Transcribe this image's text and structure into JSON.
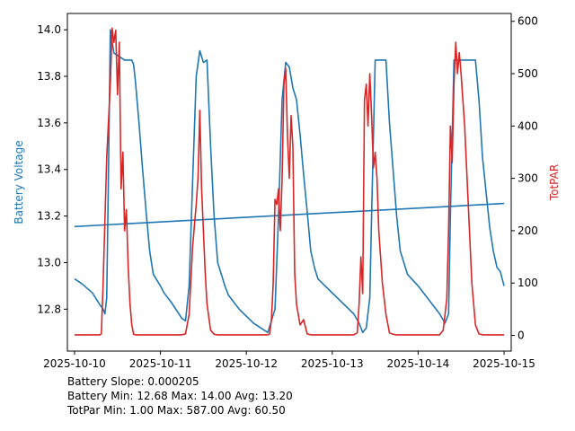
{
  "chart_data": {
    "type": "line",
    "title": "",
    "xlabel": "",
    "ylabel_left": "Battery Voltage",
    "ylabel_right": "TotPAR",
    "colors": {
      "battery": "#1f77b4",
      "totpar": "#d62728"
    },
    "x_range": [
      "2025-10-09 22:00",
      "2025-10-15 02:00"
    ],
    "x_ticks": [
      "2025-10-10",
      "2025-10-11",
      "2025-10-12",
      "2025-10-13",
      "2025-10-14",
      "2025-10-15"
    ],
    "ylim_left": [
      12.62,
      14.07
    ],
    "yticks_left": [
      "12.8",
      "13.0",
      "13.2",
      "13.4",
      "13.6",
      "13.8",
      "14.0"
    ],
    "ylim_right": [
      -30,
      615
    ],
    "yticks_right": [
      "0",
      "100",
      "200",
      "300",
      "400",
      "500",
      "600"
    ],
    "grid": false,
    "series": [
      {
        "name": "Battery Voltage",
        "axis": "left",
        "x": [
          "2025-10-10 00:00",
          "2025-10-10 02:00",
          "2025-10-10 05:00",
          "2025-10-10 07:00",
          "2025-10-10 08:00",
          "2025-10-10 08:30",
          "2025-10-10 09:00",
          "2025-10-10 09:30",
          "2025-10-10 10:00",
          "2025-10-10 11:00",
          "2025-10-10 14:00",
          "2025-10-10 16:00",
          "2025-10-10 16:30",
          "2025-10-10 17:00",
          "2025-10-10 18:00",
          "2025-10-10 19:00",
          "2025-10-10 20:00",
          "2025-10-10 21:00",
          "2025-10-10 22:00",
          "2025-10-11 00:00",
          "2025-10-11 01:00",
          "2025-10-11 03:00",
          "2025-10-11 06:00",
          "2025-10-11 07:00",
          "2025-10-11 08:00",
          "2025-10-11 09:00",
          "2025-10-11 10:00",
          "2025-10-11 11:00",
          "2025-10-11 12:00",
          "2025-10-11 13:00",
          "2025-10-11 14:00",
          "2025-10-11 15:00",
          "2025-10-11 16:00",
          "2025-10-11 17:00",
          "2025-10-11 18:00",
          "2025-10-11 19:00",
          "2025-10-11 20:00",
          "2025-10-11 22:00",
          "2025-10-12 02:00",
          "2025-10-12 06:00",
          "2025-10-12 08:00",
          "2025-10-12 09:00",
          "2025-10-12 10:00",
          "2025-10-12 11:00",
          "2025-10-12 12:00",
          "2025-10-12 13:00",
          "2025-10-12 14:00",
          "2025-10-12 15:00",
          "2025-10-12 16:00",
          "2025-10-12 17:00",
          "2025-10-12 18:00",
          "2025-10-12 19:00",
          "2025-10-12 20:00",
          "2025-10-12 22:00",
          "2025-10-13 02:00",
          "2025-10-13 06:00",
          "2025-10-13 07:30",
          "2025-10-13 08:30",
          "2025-10-13 09:30",
          "2025-10-13 10:30",
          "2025-10-13 11:00",
          "2025-10-13 12:00",
          "2025-10-13 14:00",
          "2025-10-13 15:00",
          "2025-10-13 16:00",
          "2025-10-13 17:00",
          "2025-10-13 18:00",
          "2025-10-13 19:00",
          "2025-10-13 21:00",
          "2025-10-14 00:00",
          "2025-10-14 03:00",
          "2025-10-14 06:00",
          "2025-10-14 07:30",
          "2025-10-14 08:30",
          "2025-10-14 09:00",
          "2025-10-14 10:00",
          "2025-10-14 15:00",
          "2025-10-14 16:00",
          "2025-10-14 17:00",
          "2025-10-14 18:00",
          "2025-10-14 19:00",
          "2025-10-14 20:00",
          "2025-10-14 21:00",
          "2025-10-14 22:00",
          "2025-10-14 23:00",
          "2025-10-15 00:00"
        ],
        "values": [
          12.93,
          12.91,
          12.87,
          12.82,
          12.8,
          12.78,
          12.85,
          13.4,
          14.0,
          13.9,
          13.87,
          13.87,
          13.85,
          13.78,
          13.6,
          13.4,
          13.22,
          13.05,
          12.95,
          12.9,
          12.87,
          12.83,
          12.76,
          12.75,
          12.9,
          13.35,
          13.8,
          13.91,
          13.86,
          13.87,
          13.5,
          13.2,
          13.0,
          12.95,
          12.9,
          12.86,
          12.84,
          12.8,
          12.74,
          12.7,
          12.8,
          13.2,
          13.7,
          13.86,
          13.84,
          13.75,
          13.7,
          13.55,
          13.38,
          13.22,
          13.05,
          12.98,
          12.93,
          12.9,
          12.84,
          12.78,
          12.74,
          12.7,
          12.72,
          12.85,
          13.2,
          13.87,
          13.87,
          13.87,
          13.6,
          13.4,
          13.2,
          13.05,
          12.95,
          12.9,
          12.84,
          12.78,
          12.74,
          12.78,
          13.2,
          13.87,
          13.87,
          13.87,
          13.7,
          13.45,
          13.3,
          13.15,
          13.05,
          12.98,
          12.96,
          12.9
        ]
      },
      {
        "name": "Battery Slope",
        "axis": "left",
        "x": [
          "2025-10-10 00:00",
          "2025-10-15 00:00"
        ],
        "values": [
          13.155,
          13.254
        ]
      },
      {
        "name": "TotPAR",
        "axis": "right",
        "x": [
          "2025-10-10 00:00",
          "2025-10-10 06:00",
          "2025-10-10 07:00",
          "2025-10-10 07:30",
          "2025-10-10 08:00",
          "2025-10-10 09:00",
          "2025-10-10 10:00",
          "2025-10-10 10:30",
          "2025-10-10 11:00",
          "2025-10-10 11:30",
          "2025-10-10 12:00",
          "2025-10-10 12:30",
          "2025-10-10 13:00",
          "2025-10-10 13:30",
          "2025-10-10 14:00",
          "2025-10-10 14:30",
          "2025-10-10 15:00",
          "2025-10-10 15:30",
          "2025-10-10 16:00",
          "2025-10-10 16:30",
          "2025-10-10 17:00",
          "2025-10-10 18:00",
          "2025-10-10 19:00",
          "2025-10-11 06:00",
          "2025-10-11 07:00",
          "2025-10-11 08:00",
          "2025-10-11 09:00",
          "2025-10-11 10:00",
          "2025-10-11 10:30",
          "2025-10-11 11:00",
          "2025-10-11 11:30",
          "2025-10-11 12:00",
          "2025-10-11 12:30",
          "2025-10-11 13:00",
          "2025-10-11 14:00",
          "2025-10-11 15:00",
          "2025-10-11 16:00",
          "2025-10-11 17:00",
          "2025-10-11 18:00",
          "2025-10-12 06:00",
          "2025-10-12 06:30",
          "2025-10-12 07:00",
          "2025-10-12 07:30",
          "2025-10-12 08:00",
          "2025-10-12 08:30",
          "2025-10-12 09:00",
          "2025-10-12 09:30",
          "2025-10-12 10:00",
          "2025-10-12 10:30",
          "2025-10-12 11:00",
          "2025-10-12 11:30",
          "2025-10-12 12:00",
          "2025-10-12 12:30",
          "2025-10-12 13:00",
          "2025-10-12 13:30",
          "2025-10-12 14:00",
          "2025-10-12 15:00",
          "2025-10-12 16:00",
          "2025-10-12 17:00",
          "2025-10-12 18:00",
          "2025-10-13 06:00",
          "2025-10-13 07:00",
          "2025-10-13 07:30",
          "2025-10-13 08:00",
          "2025-10-13 08:30",
          "2025-10-13 09:00",
          "2025-10-13 09:30",
          "2025-10-13 10:00",
          "2025-10-13 10:30",
          "2025-10-13 11:00",
          "2025-10-13 11:30",
          "2025-10-13 12:00",
          "2025-10-13 12:30",
          "2025-10-13 13:00",
          "2025-10-13 14:00",
          "2025-10-13 15:00",
          "2025-10-13 16:00",
          "2025-10-13 17:00",
          "2025-10-13 18:00",
          "2025-10-14 06:00",
          "2025-10-14 07:00",
          "2025-10-14 08:00",
          "2025-10-14 08:30",
          "2025-10-14 09:00",
          "2025-10-14 09:30",
          "2025-10-14 10:00",
          "2025-10-14 10:30",
          "2025-10-14 11:00",
          "2025-10-14 11:30",
          "2025-10-14 12:00",
          "2025-10-14 12:30",
          "2025-10-14 13:00",
          "2025-10-14 14:00",
          "2025-10-14 15:00",
          "2025-10-14 16:00",
          "2025-10-14 17:00",
          "2025-10-14 18:00",
          "2025-10-15 00:00"
        ],
        "values": [
          1,
          1,
          1,
          3,
          100,
          340,
          480,
          587,
          560,
          583,
          460,
          560,
          280,
          350,
          200,
          240,
          130,
          60,
          20,
          2,
          1,
          1,
          1,
          1,
          3,
          40,
          170,
          250,
          300,
          430,
          280,
          200,
          120,
          60,
          10,
          2,
          1,
          1,
          1,
          1,
          3,
          30,
          100,
          260,
          250,
          280,
          200,
          300,
          480,
          510,
          380,
          300,
          420,
          360,
          120,
          60,
          20,
          30,
          3,
          1,
          1,
          5,
          60,
          150,
          80,
          450,
          480,
          400,
          500,
          420,
          320,
          350,
          300,
          200,
          100,
          40,
          5,
          2,
          1,
          1,
          10,
          70,
          200,
          400,
          330,
          480,
          560,
          500,
          540,
          500,
          450,
          400,
          250,
          100,
          20,
          3,
          1,
          1
        ]
      }
    ],
    "annotations": [
      "Battery Slope: 0.000205",
      "Battery Min: 12.68 Max: 14.00 Avg: 13.20",
      "TotPar Min: 1.00 Max: 587.00 Avg: 60.50"
    ]
  }
}
